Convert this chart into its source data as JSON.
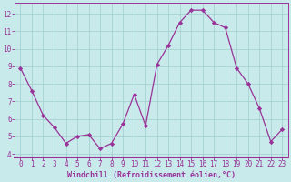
{
  "x": [
    0,
    1,
    2,
    3,
    4,
    5,
    6,
    7,
    8,
    9,
    10,
    11,
    12,
    13,
    14,
    15,
    16,
    17,
    18,
    19,
    20,
    21,
    22,
    23
  ],
  "y": [
    8.9,
    7.6,
    6.2,
    5.5,
    4.6,
    5.0,
    5.1,
    4.3,
    4.6,
    5.7,
    7.4,
    5.6,
    9.1,
    10.2,
    11.5,
    12.2,
    12.2,
    11.5,
    11.2,
    8.9,
    8.0,
    6.6,
    4.7,
    5.4
  ],
  "line_color": "#993399",
  "marker": "D",
  "marker_size": 2.2,
  "bg_color": "#c8eaea",
  "grid_color": "#a0cccc",
  "xlabel": "Windchill (Refroidissement éolien,°C)",
  "xlabel_color": "#993399",
  "tick_color": "#993399",
  "spine_color": "#993399",
  "ylim": [
    3.8,
    12.6
  ],
  "xlim": [
    -0.5,
    23.5
  ],
  "yticks": [
    4,
    5,
    6,
    7,
    8,
    9,
    10,
    11,
    12
  ],
  "xticks": [
    0,
    1,
    2,
    3,
    4,
    5,
    6,
    7,
    8,
    9,
    10,
    11,
    12,
    13,
    14,
    15,
    16,
    17,
    18,
    19,
    20,
    21,
    22,
    23
  ],
  "tick_fontsize": 5.5,
  "xlabel_fontsize": 6.0,
  "line_width": 0.9
}
